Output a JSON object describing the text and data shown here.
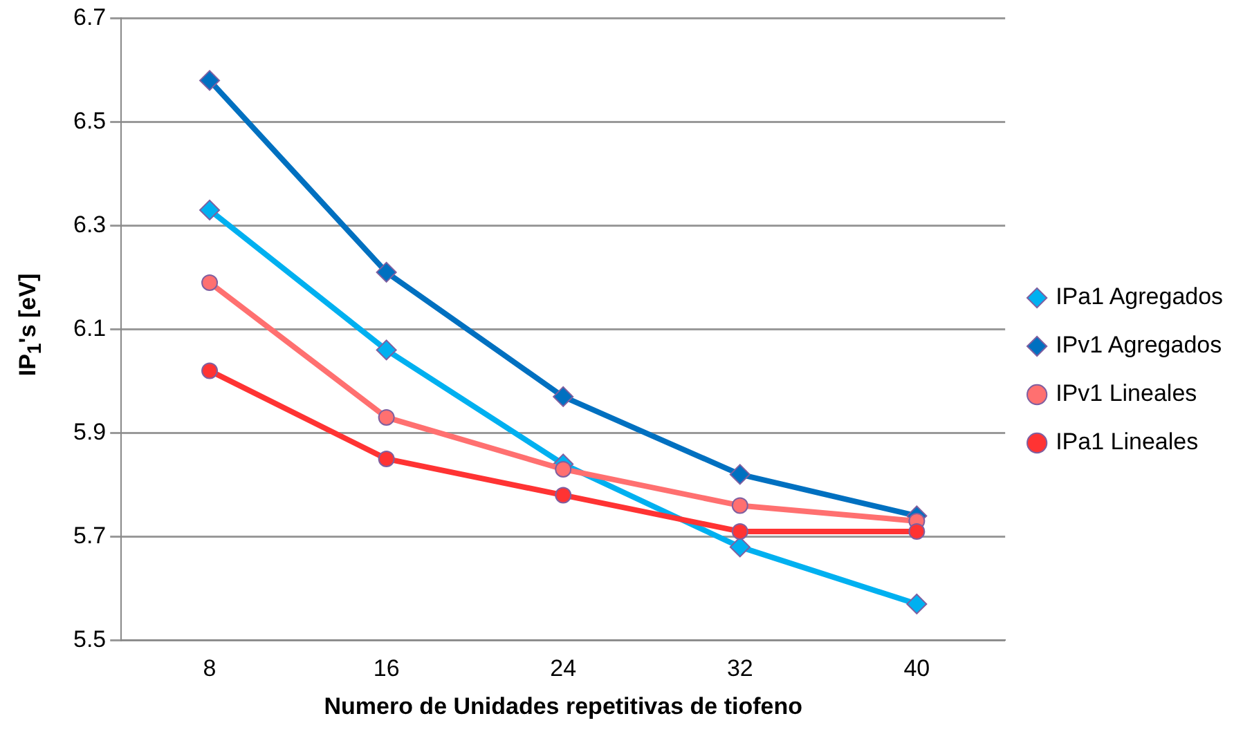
{
  "chart_data": {
    "type": "line",
    "xlabel": "Numero de Unidades repetitivas de tiofeno",
    "ylabel": "IP$_{1}$'s [eV]",
    "categories": [
      "8",
      "16",
      "24",
      "32",
      "40"
    ],
    "series": [
      {
        "name": "IPa1 Agregados",
        "color": "#00b0f0",
        "marker": "diamond",
        "values": [
          6.33,
          6.06,
          5.84,
          5.68,
          5.57
        ]
      },
      {
        "name": "IPv1 Agregados",
        "color": "#0070c0",
        "marker": "diamond",
        "values": [
          6.58,
          6.21,
          5.97,
          5.82,
          5.74
        ]
      },
      {
        "name": "IPv1 Lineales",
        "color": "#ff7070",
        "marker": "circle",
        "values": [
          6.19,
          5.93,
          5.83,
          5.76,
          5.73
        ]
      },
      {
        "name": "IPa1 Lineales",
        "color": "#ff3333",
        "marker": "circle",
        "values": [
          6.02,
          5.85,
          5.78,
          5.71,
          5.71
        ]
      }
    ],
    "ylim": [
      5.5,
      6.7
    ],
    "yticks": [
      5.5,
      5.7,
      5.9,
      6.1,
      6.3,
      6.5,
      6.7
    ],
    "grid": "y",
    "legend": "right",
    "line_style": "solid"
  }
}
